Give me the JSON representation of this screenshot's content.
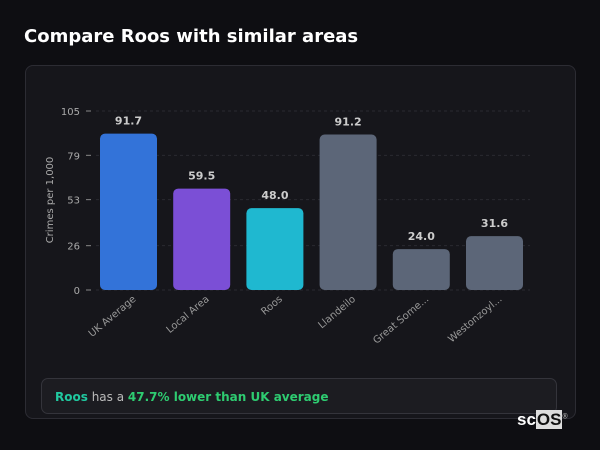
{
  "title": "Compare Roos with similar areas",
  "chart_data": {
    "type": "bar",
    "categories": [
      "UK Average",
      "Local Area",
      "Roos",
      "Llandeilo",
      "Great Some...",
      "Westonzoyl..."
    ],
    "values": [
      91.7,
      59.5,
      48.0,
      91.2,
      24.0,
      31.6
    ],
    "value_labels": [
      "91.7",
      "59.5",
      "48.0",
      "91.2",
      "24.0",
      "31.6"
    ],
    "colors": [
      "#3373d9",
      "#7b4fd6",
      "#1fb8d0",
      "#5c6678",
      "#5c6678",
      "#5c6678"
    ],
    "ylabel": "Crimes per 1,000",
    "yticks": [
      0,
      26,
      53,
      79,
      105
    ],
    "ylim": [
      0,
      105
    ],
    "grid": true
  },
  "summary": {
    "area": "Roos",
    "middle": " has a ",
    "highlight": "47.7% lower than UK average"
  },
  "logo": {
    "text_a": "sc",
    "text_b": "OS",
    "mark": "®"
  }
}
